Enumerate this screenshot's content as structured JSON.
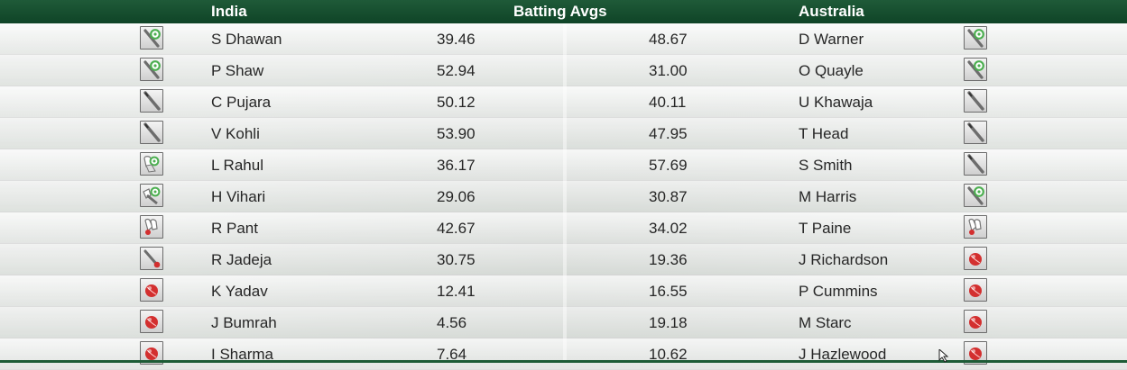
{
  "header": {
    "left_team": "India",
    "center_title": "Batting Avgs",
    "right_team": "Australia"
  },
  "colors": {
    "header_bg": "#0f4427",
    "header_text": "#ffffff",
    "row_text": "#262626",
    "ball_red": "#d32f2f",
    "pad_green": "#4caf50"
  },
  "rows": [
    {
      "left_icon": "batsman-keeper-icon",
      "left_name": "S Dhawan",
      "left_avg": "39.46",
      "right_avg": "48.67",
      "right_name": "D Warner",
      "right_icon": "batsman-keeper-icon"
    },
    {
      "left_icon": "batsman-keeper-icon",
      "left_name": "P Shaw",
      "left_avg": "52.94",
      "right_avg": "31.00",
      "right_name": "O Quayle",
      "right_icon": "batsman-keeper-icon"
    },
    {
      "left_icon": "bat-icon",
      "left_name": "C Pujara",
      "left_avg": "50.12",
      "right_avg": "40.11",
      "right_name": "U Khawaja",
      "right_icon": "bat-icon"
    },
    {
      "left_icon": "bat-icon",
      "left_name": "V Kohli",
      "left_avg": "53.90",
      "right_avg": "47.95",
      "right_name": "T Head",
      "right_icon": "bat-icon"
    },
    {
      "left_icon": "keeper-gloves-icon",
      "left_name": "L Rahul",
      "left_avg": "36.17",
      "right_avg": "57.69",
      "right_name": "S Smith",
      "right_icon": "bat-icon"
    },
    {
      "left_icon": "allrounder-icon",
      "left_name": "H Vihari",
      "left_avg": "29.06",
      "right_avg": "30.87",
      "right_name": "M Harris",
      "right_icon": "batsman-keeper-icon"
    },
    {
      "left_icon": "wicketkeeper-icon",
      "left_name": "R Pant",
      "left_avg": "42.67",
      "right_avg": "34.02",
      "right_name": "T Paine",
      "right_icon": "wicketkeeper-icon"
    },
    {
      "left_icon": "bat-ball-icon",
      "left_name": "R Jadeja",
      "left_avg": "30.75",
      "right_avg": "19.36",
      "right_name": "J Richardson",
      "right_icon": "ball-icon"
    },
    {
      "left_icon": "ball-icon",
      "left_name": "K Yadav",
      "left_avg": "12.41",
      "right_avg": "16.55",
      "right_name": "P Cummins",
      "right_icon": "ball-icon"
    },
    {
      "left_icon": "ball-icon",
      "left_name": "J Bumrah",
      "left_avg": "4.56",
      "right_avg": "19.18",
      "right_name": "M Starc",
      "right_icon": "ball-icon"
    },
    {
      "left_icon": "ball-icon",
      "left_name": "I Sharma",
      "left_avg": "7.64",
      "right_avg": "10.62",
      "right_name": "J Hazlewood",
      "right_icon": "ball-icon"
    }
  ]
}
